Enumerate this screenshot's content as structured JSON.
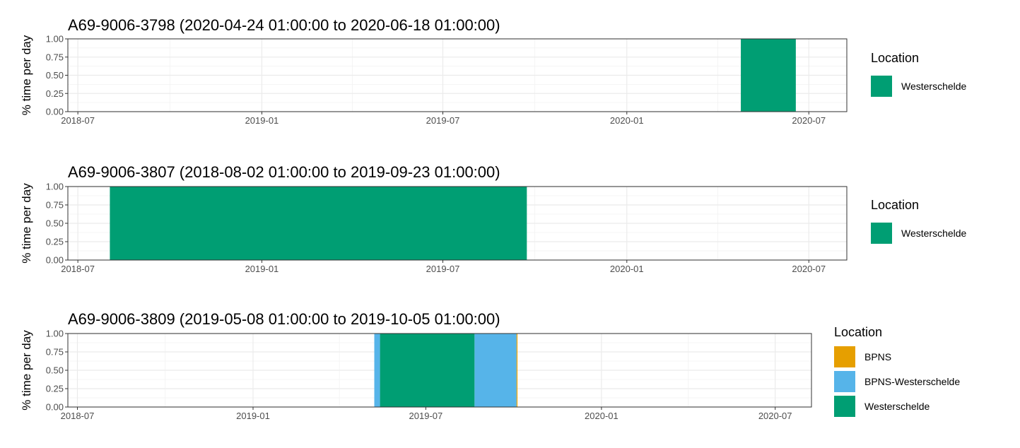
{
  "chart_data": [
    {
      "type": "bar",
      "title": "A69-9006-3798 (2020-04-24 01:00:00 to 2020-06-18 01:00:00)",
      "xlabel": "",
      "ylabel": "% time per day",
      "xlim": [
        "2018-06-21",
        "2020-08-08"
      ],
      "ylim": [
        0,
        1
      ],
      "x_ticks": [
        "2018-07",
        "2019-01",
        "2019-07",
        "2020-01",
        "2020-07"
      ],
      "y_ticks": [
        "0.00",
        "0.25",
        "0.50",
        "0.75",
        "1.00"
      ],
      "grid": true,
      "legend": {
        "title": "Location",
        "position": "right",
        "entries": [
          "Westerschelde"
        ]
      },
      "series": [
        {
          "name": "Westerschelde",
          "color": "#009E73",
          "periods": [
            {
              "start": "2020-04-24",
              "end": "2020-06-18",
              "value": 1.0
            }
          ]
        }
      ]
    },
    {
      "type": "bar",
      "title": "A69-9006-3807 (2018-08-02 01:00:00 to 2019-09-23 01:00:00)",
      "xlabel": "",
      "ylabel": "% time per day",
      "xlim": [
        "2018-06-21",
        "2020-08-08"
      ],
      "ylim": [
        0,
        1
      ],
      "x_ticks": [
        "2018-07",
        "2019-01",
        "2019-07",
        "2020-01",
        "2020-07"
      ],
      "y_ticks": [
        "0.00",
        "0.25",
        "0.50",
        "0.75",
        "1.00"
      ],
      "grid": true,
      "legend": {
        "title": "Location",
        "position": "right",
        "entries": [
          "Westerschelde"
        ]
      },
      "series": [
        {
          "name": "Westerschelde",
          "color": "#009E73",
          "periods": [
            {
              "start": "2018-08-02",
              "end": "2019-09-23",
              "value": 1.0
            }
          ]
        }
      ]
    },
    {
      "type": "bar",
      "title": "A69-9006-3809 (2019-05-08 01:00:00 to 2019-10-05 01:00:00)",
      "xlabel": "",
      "ylabel": "% time per day",
      "xlim": [
        "2018-06-21",
        "2020-08-08"
      ],
      "ylim": [
        0,
        1
      ],
      "x_ticks": [
        "2018-07",
        "2019-01",
        "2019-07",
        "2020-01",
        "2020-07"
      ],
      "y_ticks": [
        "0.00",
        "0.25",
        "0.50",
        "0.75",
        "1.00"
      ],
      "grid": true,
      "legend": {
        "title": "Location",
        "position": "right",
        "entries": [
          "BPNS",
          "BPNS-Westerschelde",
          "Westerschelde"
        ]
      },
      "series": [
        {
          "name": "BPNS",
          "color": "#E69F00",
          "periods": [
            {
              "start": "2019-10-04",
              "end": "2019-10-05",
              "value": 1.0
            }
          ]
        },
        {
          "name": "BPNS-Westerschelde",
          "color": "#56B4E9",
          "periods": [
            {
              "start": "2019-05-08",
              "end": "2019-05-14",
              "value": 1.0
            },
            {
              "start": "2019-08-21",
              "end": "2019-10-04",
              "value": 1.0
            }
          ]
        },
        {
          "name": "Westerschelde",
          "color": "#009E73",
          "periods": [
            {
              "start": "2019-05-14",
              "end": "2019-08-21",
              "value": 1.0
            }
          ]
        }
      ]
    }
  ]
}
